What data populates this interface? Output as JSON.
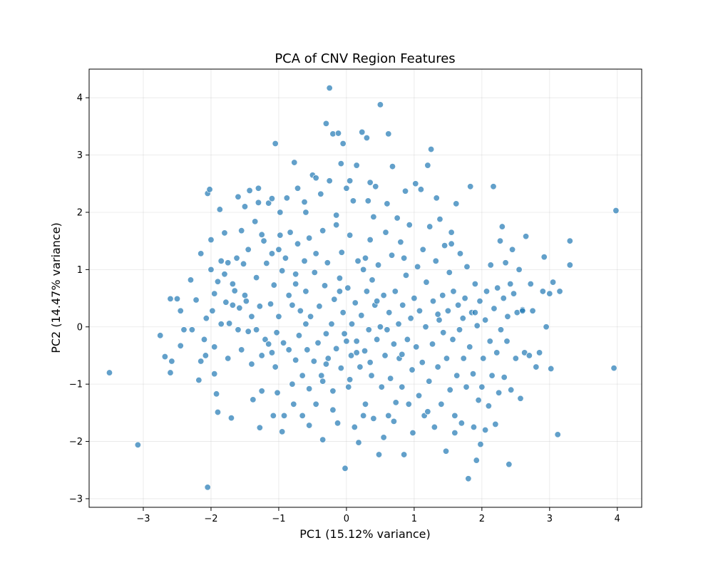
{
  "chart_data": {
    "type": "scatter",
    "title": "PCA of CNV Region Features",
    "xlabel": "PC1 (15.12% variance)",
    "ylabel": "PC2 (14.47% variance)",
    "xlim": [
      -3.8,
      4.36
    ],
    "ylim": [
      -3.15,
      4.5
    ],
    "xticks": [
      -3,
      -2,
      -1,
      0,
      1,
      2,
      3,
      4
    ],
    "yticks": [
      -3,
      -2,
      -1,
      0,
      1,
      2,
      3,
      4
    ],
    "xtick_labels": [
      "−3",
      "−2",
      "−1",
      "0",
      "1",
      "2",
      "3",
      "4"
    ],
    "ytick_labels": [
      "−3",
      "−2",
      "−1",
      "0",
      "1",
      "2",
      "3",
      "4"
    ],
    "grid": true,
    "color": "#1f77b4",
    "points": [
      [
        -3.5,
        -0.8
      ],
      [
        -3.08,
        -2.06
      ],
      [
        -2.75,
        -0.15
      ],
      [
        -2.68,
        -0.52
      ],
      [
        -2.6,
        -0.8
      ],
      [
        -2.58,
        -0.6
      ],
      [
        -2.6,
        0.49
      ],
      [
        -2.5,
        0.49
      ],
      [
        -2.45,
        0.28
      ],
      [
        -2.45,
        -0.33
      ],
      [
        -2.4,
        -0.05
      ],
      [
        -2.3,
        0.82
      ],
      [
        -2.28,
        -0.05
      ],
      [
        -2.22,
        0.47
      ],
      [
        -2.18,
        -0.93
      ],
      [
        -2.15,
        1.28
      ],
      [
        -2.1,
        -0.22
      ],
      [
        -2.08,
        -0.5
      ],
      [
        -2.07,
        0.15
      ],
      [
        -2.05,
        2.33
      ],
      [
        -2.02,
        2.4
      ],
      [
        -2.05,
        -2.8
      ],
      [
        -2.0,
        1.0
      ],
      [
        -2.0,
        1.52
      ],
      [
        -1.98,
        0.28
      ],
      [
        -1.95,
        0.58
      ],
      [
        -1.95,
        -0.82
      ],
      [
        -1.92,
        -1.17
      ],
      [
        -1.9,
        -1.49
      ],
      [
        -1.9,
        0.79
      ],
      [
        -1.85,
        0.05
      ],
      [
        -1.87,
        2.05
      ],
      [
        -1.8,
        1.64
      ],
      [
        -1.8,
        0.92
      ],
      [
        -1.78,
        0.43
      ],
      [
        -1.75,
        1.12
      ],
      [
        -1.73,
        0.06
      ],
      [
        -1.7,
        -1.59
      ],
      [
        -1.68,
        0.38
      ],
      [
        -1.65,
        0.63
      ],
      [
        -1.62,
        1.2
      ],
      [
        -1.6,
        -0.05
      ],
      [
        -1.6,
        2.27
      ],
      [
        -1.58,
        0.33
      ],
      [
        -1.55,
        -0.4
      ],
      [
        -1.55,
        1.68
      ],
      [
        -1.52,
        1.1
      ],
      [
        -1.5,
        2.1
      ],
      [
        -1.48,
        0.45
      ],
      [
        -1.45,
        -0.08
      ],
      [
        -1.45,
        1.35
      ],
      [
        -1.43,
        2.38
      ],
      [
        -1.4,
        0.18
      ],
      [
        -1.4,
        -0.65
      ],
      [
        -1.38,
        -1.27
      ],
      [
        -1.35,
        1.84
      ],
      [
        -1.33,
        -0.05
      ],
      [
        -1.33,
        0.86
      ],
      [
        -1.3,
        2.17
      ],
      [
        -1.28,
        0.36
      ],
      [
        -1.28,
        -1.76
      ],
      [
        -1.25,
        1.61
      ],
      [
        -1.25,
        -0.5
      ],
      [
        -1.22,
        1.5
      ],
      [
        -1.2,
        -0.22
      ],
      [
        -1.18,
        1.11
      ],
      [
        -1.15,
        2.16
      ],
      [
        -1.15,
        -0.3
      ],
      [
        -1.12,
        0.4
      ],
      [
        -1.1,
        1.28
      ],
      [
        -1.1,
        2.24
      ],
      [
        -1.08,
        -1.55
      ],
      [
        -1.07,
        0.73
      ],
      [
        -1.05,
        -0.7
      ],
      [
        -1.05,
        3.2
      ],
      [
        -1.03,
        -0.1
      ],
      [
        -1.0,
        1.35
      ],
      [
        -1.0,
        0.18
      ],
      [
        -0.98,
        2.0
      ],
      [
        -0.95,
        -1.83
      ],
      [
        -0.95,
        0.98
      ],
      [
        -0.93,
        -0.28
      ],
      [
        -0.9,
        1.2
      ],
      [
        -0.88,
        2.25
      ],
      [
        -0.85,
        -0.4
      ],
      [
        -0.85,
        0.55
      ],
      [
        -0.83,
        1.65
      ],
      [
        -0.8,
        -1.0
      ],
      [
        -0.8,
        0.38
      ],
      [
        -0.78,
        -1.35
      ],
      [
        -0.77,
        2.87
      ],
      [
        -0.75,
        -0.58
      ],
      [
        -0.75,
        0.92
      ],
      [
        -0.72,
        1.45
      ],
      [
        -0.72,
        2.42
      ],
      [
        -0.7,
        -0.15
      ],
      [
        -0.68,
        0.28
      ],
      [
        -0.65,
        -0.85
      ],
      [
        -0.65,
        -1.55
      ],
      [
        -0.62,
        1.15
      ],
      [
        -0.6,
        0.62
      ],
      [
        -0.6,
        2.0
      ],
      [
        -0.58,
        -0.4
      ],
      [
        -0.55,
        -1.08
      ],
      [
        -0.55,
        1.55
      ],
      [
        -0.53,
        0.18
      ],
      [
        -0.5,
        2.65
      ],
      [
        -0.48,
        -0.6
      ],
      [
        -0.47,
        0.95
      ],
      [
        -0.45,
        -1.35
      ],
      [
        -0.45,
        1.28
      ],
      [
        -0.42,
        -0.28
      ],
      [
        -0.4,
        0.36
      ],
      [
        -0.38,
        2.32
      ],
      [
        -0.37,
        -0.85
      ],
      [
        -0.35,
        1.68
      ],
      [
        -0.35,
        -1.97
      ],
      [
        -0.32,
        0.72
      ],
      [
        -0.3,
        -0.12
      ],
      [
        -0.3,
        3.55
      ],
      [
        -0.28,
        1.12
      ],
      [
        -0.27,
        -0.55
      ],
      [
        -0.25,
        2.55
      ],
      [
        -0.22,
        0.05
      ],
      [
        -0.2,
        -1.12
      ],
      [
        -0.2,
        3.37
      ],
      [
        -0.18,
        0.48
      ],
      [
        -0.15,
        -0.38
      ],
      [
        -0.15,
        1.78
      ],
      [
        -0.13,
        -1.68
      ],
      [
        -0.12,
        3.38
      ],
      [
        -0.1,
        0.85
      ],
      [
        -0.08,
        -0.72
      ],
      [
        -0.07,
        1.3
      ],
      [
        -0.05,
        0.25
      ],
      [
        -0.05,
        3.2
      ],
      [
        -0.03,
        -0.12
      ],
      [
        -0.02,
        -2.47
      ],
      [
        0.0,
        -0.25
      ],
      [
        0.0,
        2.42
      ],
      [
        0.02,
        0.68
      ],
      [
        0.03,
        -1.05
      ],
      [
        0.05,
        1.6
      ],
      [
        0.07,
        -0.5
      ],
      [
        0.08,
        0.05
      ],
      [
        0.1,
        2.2
      ],
      [
        0.12,
        -1.75
      ],
      [
        0.13,
        0.42
      ],
      [
        0.15,
        -0.25
      ],
      [
        0.15,
        2.82
      ],
      [
        0.17,
        1.15
      ],
      [
        0.18,
        -2.02
      ],
      [
        0.2,
        -0.7
      ],
      [
        0.22,
        0.2
      ],
      [
        0.23,
        3.4
      ],
      [
        0.25,
        1.0
      ],
      [
        0.27,
        -0.42
      ],
      [
        0.28,
        -1.35
      ],
      [
        0.3,
        0.62
      ],
      [
        0.3,
        3.3
      ],
      [
        0.32,
        2.2
      ],
      [
        0.33,
        -0.05
      ],
      [
        0.35,
        1.52
      ],
      [
        0.37,
        -0.85
      ],
      [
        0.38,
        0.82
      ],
      [
        0.4,
        -1.6
      ],
      [
        0.42,
        0.38
      ],
      [
        0.43,
        2.45
      ],
      [
        0.45,
        -0.22
      ],
      [
        0.47,
        1.08
      ],
      [
        0.48,
        -2.23
      ],
      [
        0.5,
        3.88
      ],
      [
        0.5,
        0.0
      ],
      [
        0.52,
        -1.05
      ],
      [
        0.55,
        -1.93
      ],
      [
        0.55,
        0.55
      ],
      [
        0.57,
        -0.5
      ],
      [
        0.58,
        1.65
      ],
      [
        0.6,
        2.15
      ],
      [
        0.62,
        -1.55
      ],
      [
        0.63,
        0.25
      ],
      [
        0.65,
        -0.9
      ],
      [
        0.67,
        1.25
      ],
      [
        0.68,
        2.8
      ],
      [
        0.7,
        -0.3
      ],
      [
        0.72,
        0.62
      ],
      [
        0.73,
        -1.32
      ],
      [
        0.75,
        1.9
      ],
      [
        0.77,
        0.05
      ],
      [
        0.78,
        -0.55
      ],
      [
        0.8,
        1.48
      ],
      [
        0.82,
        -1.05
      ],
      [
        0.83,
        0.38
      ],
      [
        0.85,
        -2.23
      ],
      [
        0.87,
        2.37
      ],
      [
        0.88,
        0.9
      ],
      [
        0.9,
        -0.22
      ],
      [
        0.92,
        -1.35
      ],
      [
        0.93,
        1.78
      ],
      [
        0.95,
        0.15
      ],
      [
        0.97,
        -0.75
      ],
      [
        0.98,
        -1.85
      ],
      [
        1.0,
        0.5
      ],
      [
        1.02,
        2.5
      ],
      [
        1.03,
        -0.35
      ],
      [
        1.05,
        1.05
      ],
      [
        1.07,
        -1.2
      ],
      [
        1.08,
        0.28
      ],
      [
        1.1,
        2.4
      ],
      [
        1.12,
        -0.62
      ],
      [
        1.13,
        1.35
      ],
      [
        1.15,
        -1.55
      ],
      [
        1.17,
        0.0
      ],
      [
        1.18,
        0.78
      ],
      [
        1.2,
        2.82
      ],
      [
        1.22,
        -0.95
      ],
      [
        1.23,
        1.75
      ],
      [
        1.25,
        3.1
      ],
      [
        1.27,
        -0.3
      ],
      [
        1.28,
        0.45
      ],
      [
        1.3,
        -1.75
      ],
      [
        1.32,
        1.15
      ],
      [
        1.33,
        2.25
      ],
      [
        1.35,
        -0.7
      ],
      [
        1.37,
        0.12
      ],
      [
        1.38,
        1.88
      ],
      [
        1.4,
        -1.35
      ],
      [
        1.42,
        0.55
      ],
      [
        1.43,
        -0.1
      ],
      [
        1.45,
        1.42
      ],
      [
        1.47,
        -2.17
      ],
      [
        1.48,
        -0.55
      ],
      [
        1.5,
        0.28
      ],
      [
        1.52,
        0.95
      ],
      [
        1.53,
        -1.1
      ],
      [
        1.55,
        1.65
      ],
      [
        1.57,
        -0.22
      ],
      [
        1.58,
        0.62
      ],
      [
        1.6,
        -1.55
      ],
      [
        1.62,
        2.15
      ],
      [
        1.63,
        -0.85
      ],
      [
        1.65,
        0.38
      ],
      [
        1.67,
        -0.05
      ],
      [
        1.68,
        1.28
      ],
      [
        1.7,
        -1.68
      ],
      [
        1.72,
        0.15
      ],
      [
        1.73,
        -0.55
      ],
      [
        1.75,
        0.5
      ],
      [
        1.77,
        -1.05
      ],
      [
        1.78,
        1.05
      ],
      [
        1.8,
        -2.65
      ],
      [
        1.82,
        -0.35
      ],
      [
        1.83,
        2.45
      ],
      [
        1.85,
        0.25
      ],
      [
        1.87,
        -0.82
      ],
      [
        1.88,
        -1.75
      ],
      [
        1.9,
        0.75
      ],
      [
        1.92,
        -2.33
      ],
      [
        1.93,
        0.02
      ],
      [
        1.95,
        -1.28
      ],
      [
        1.97,
        0.45
      ],
      [
        1.98,
        -2.05
      ],
      [
        2.0,
        -1.05
      ],
      [
        2.02,
        -0.55
      ],
      [
        2.05,
        0.12
      ],
      [
        2.07,
        0.62
      ],
      [
        2.1,
        -1.38
      ],
      [
        2.12,
        -0.25
      ],
      [
        2.13,
        1.08
      ],
      [
        2.15,
        -0.85
      ],
      [
        2.17,
        2.45
      ],
      [
        2.18,
        0.32
      ],
      [
        2.2,
        -1.7
      ],
      [
        2.22,
        -0.45
      ],
      [
        2.23,
        0.68
      ],
      [
        2.25,
        -1.15
      ],
      [
        2.27,
        1.5
      ],
      [
        2.28,
        -0.05
      ],
      [
        2.3,
        1.75
      ],
      [
        2.32,
        0.5
      ],
      [
        2.33,
        -0.88
      ],
      [
        2.35,
        1.12
      ],
      [
        2.37,
        -0.25
      ],
      [
        2.38,
        0.18
      ],
      [
        2.4,
        -2.4
      ],
      [
        2.42,
        0.75
      ],
      [
        2.43,
        -1.1
      ],
      [
        2.45,
        1.35
      ],
      [
        2.47,
        0.58
      ],
      [
        2.5,
        -0.55
      ],
      [
        2.52,
        0.25
      ],
      [
        2.55,
        1.0
      ],
      [
        2.57,
        -1.25
      ],
      [
        2.6,
        0.3
      ],
      [
        2.63,
        -0.45
      ],
      [
        2.65,
        1.58
      ],
      [
        2.7,
        -0.5
      ],
      [
        2.72,
        0.75
      ],
      [
        2.75,
        0.28
      ],
      [
        2.8,
        -0.7
      ],
      [
        2.85,
        -0.45
      ],
      [
        2.9,
        0.62
      ],
      [
        2.92,
        1.22
      ],
      [
        2.95,
        0.0
      ],
      [
        3.0,
        0.58
      ],
      [
        3.02,
        -0.73
      ],
      [
        3.05,
        0.78
      ],
      [
        3.12,
        -1.88
      ],
      [
        3.15,
        0.62
      ],
      [
        3.3,
        1.5
      ],
      [
        3.3,
        1.08
      ],
      [
        3.95,
        -0.72
      ],
      [
        3.98,
        2.03
      ],
      [
        -0.25,
        4.17
      ],
      [
        0.62,
        3.37
      ],
      [
        -0.45,
        2.6
      ],
      [
        -0.08,
        2.85
      ],
      [
        0.35,
        2.52
      ],
      [
        -0.62,
        2.18
      ],
      [
        0.05,
        2.55
      ],
      [
        -1.3,
        2.42
      ],
      [
        -0.15,
        1.95
      ],
      [
        0.4,
        1.92
      ],
      [
        -1.85,
        1.15
      ],
      [
        -1.68,
        0.75
      ],
      [
        -2.15,
        -0.6
      ],
      [
        -1.95,
        -0.35
      ],
      [
        -1.75,
        -0.55
      ],
      [
        -1.25,
        -1.12
      ],
      [
        -1.02,
        -1.15
      ],
      [
        -0.92,
        -1.55
      ],
      [
        -0.55,
        -1.72
      ],
      [
        -0.2,
        -1.45
      ],
      [
        0.25,
        -1.55
      ],
      [
        0.7,
        -1.65
      ],
      [
        1.2,
        -1.48
      ],
      [
        1.6,
        -1.85
      ],
      [
        2.05,
        -1.8
      ],
      [
        0.6,
        -0.05
      ],
      [
        -0.6,
        0.05
      ],
      [
        0.15,
        -0.45
      ],
      [
        -0.35,
        -0.95
      ],
      [
        0.45,
        0.45
      ],
      [
        -0.1,
        0.62
      ],
      [
        0.28,
        1.2
      ],
      [
        -0.75,
        0.75
      ],
      [
        1.35,
        0.22
      ],
      [
        0.82,
        -0.48
      ],
      [
        -1.5,
        0.55
      ],
      [
        -1.1,
        -0.45
      ],
      [
        1.9,
        0.25
      ],
      [
        2.6,
        0.28
      ],
      [
        1.55,
        1.45
      ],
      [
        -0.98,
        1.6
      ],
      [
        0.85,
        1.2
      ],
      [
        -0.3,
        -0.65
      ],
      [
        0.05,
        -0.92
      ],
      [
        0.35,
        -0.62
      ]
    ]
  }
}
